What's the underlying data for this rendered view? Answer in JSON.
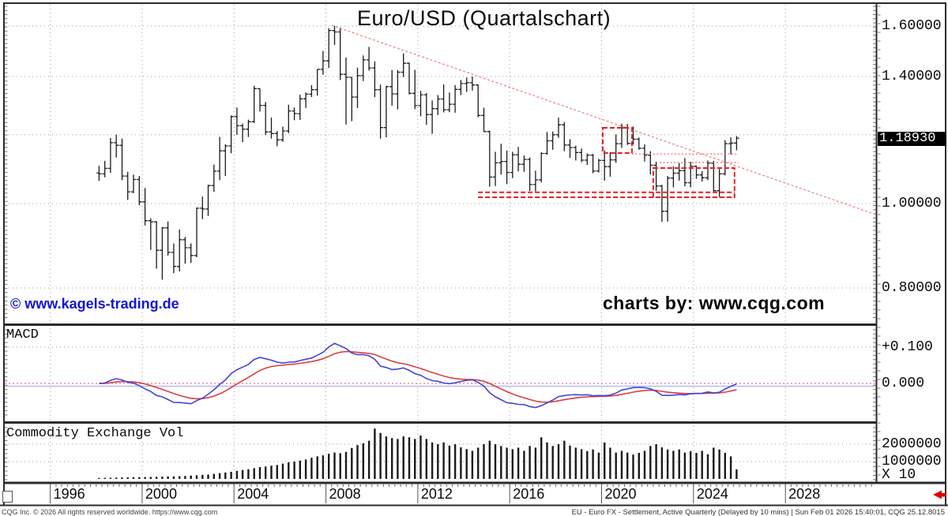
{
  "window": {
    "title": "Euro/USD (Quartalschart)"
  },
  "watermarks": {
    "left": "© www.kagels-trading.de",
    "right": "charts by: www.cqg.com"
  },
  "price_axis": {
    "labels": [
      {
        "text": "1.60000",
        "value": 1.6
      },
      {
        "text": "1.40000",
        "value": 1.4
      },
      {
        "text": "1.00000",
        "value": 1.0
      },
      {
        "text": "0.80000",
        "value": 0.8
      }
    ],
    "gridlines": [
      1.6,
      1.4,
      1.2,
      1.0,
      0.8
    ],
    "current_price_label": "1.18930",
    "current_price": 1.1893
  },
  "macd_panel": {
    "label": "MACD",
    "axis_labels": [
      {
        "text": "+0.100",
        "value": 0.1
      },
      {
        "text": "0.000",
        "value": 0.0
      }
    ]
  },
  "volume_panel": {
    "label": "Commodity Exchange Vol",
    "axis_labels": [
      {
        "text": "2000000",
        "value": 2000000
      },
      {
        "text": "1000000",
        "value": 1000000
      }
    ],
    "multiplier_label": "X 10"
  },
  "x_axis": {
    "year_labels": [
      1996,
      2000,
      2004,
      2008,
      2012,
      2016,
      2020,
      2024,
      2028
    ],
    "scroll_arrow_icon": "left-arrow-red"
  },
  "status_bar": {
    "left": "CQG Inc. © 2026 All rights reserved worldwide. https://www.cqg.com",
    "right": "EU - Euro FX - Settlement, Active Quarterly (Delayed by 10 mins) | Sun Feb 01 2026 15:40:01, CQG 25.12.8015"
  },
  "colors": {
    "bar": "#1a1a1a",
    "macd_line": "#4444d4",
    "signal_line": "#d84040",
    "macd_zero_red": "#e87878",
    "macd_zero_blue": "#b4bcf0",
    "annotation_red": "#e82020",
    "annotation_red_light": "#ea6060",
    "trendline_pink": "#f08585",
    "watermark_blue": "#1414d6",
    "grid_dot": "#9a9a9a",
    "border": "#2b2b2b",
    "current_price_bg": "#000000",
    "current_price_fg": "#ffffff",
    "scroll_arrow_red": "#e00000"
  },
  "chart_data": {
    "type": "ohlc-bar",
    "instrument": "EU - Euro FX",
    "timeframe": "quarterly",
    "title": "Euro/USD (Quartalschart)",
    "y_axis": {
      "scale": "log",
      "gridlines": [
        1.6,
        1.4,
        1.2,
        1.0,
        0.8
      ],
      "last_price": 1.1893
    },
    "x_axis": {
      "tick_years": [
        1996,
        2000,
        2004,
        2008,
        2012,
        2016,
        2020,
        2024,
        2028
      ],
      "data_start": "1998Q1",
      "data_end": "2025Q4"
    },
    "columns": [
      "year",
      "quarter",
      "open",
      "high",
      "low",
      "close",
      "volume"
    ],
    "rows": [
      [
        1998,
        1,
        1.085,
        1.105,
        1.062,
        1.082,
        60000
      ],
      [
        1998,
        2,
        1.082,
        1.12,
        1.072,
        1.098,
        65000
      ],
      [
        1998,
        3,
        1.098,
        1.19,
        1.085,
        1.175,
        70000
      ],
      [
        1998,
        4,
        1.175,
        1.2,
        1.13,
        1.167,
        75000
      ],
      [
        1999,
        1,
        1.167,
        1.188,
        1.064,
        1.076,
        85000
      ],
      [
        1999,
        2,
        1.076,
        1.088,
        1.01,
        1.032,
        90000
      ],
      [
        1999,
        3,
        1.032,
        1.08,
        1.028,
        1.066,
        95000
      ],
      [
        1999,
        4,
        1.066,
        1.076,
        0.996,
        1.005,
        100000
      ],
      [
        2000,
        1,
        1.005,
        1.042,
        0.944,
        0.956,
        110000
      ],
      [
        2000,
        2,
        0.956,
        0.962,
        0.885,
        0.953,
        115000
      ],
      [
        2000,
        3,
        0.953,
        0.955,
        0.842,
        0.884,
        120000
      ],
      [
        2000,
        4,
        0.884,
        0.94,
        0.818,
        0.938,
        130000
      ],
      [
        2001,
        1,
        0.938,
        0.954,
        0.872,
        0.879,
        140000
      ],
      [
        2001,
        2,
        0.879,
        0.9,
        0.832,
        0.847,
        150000
      ],
      [
        2001,
        3,
        0.847,
        0.934,
        0.836,
        0.909,
        160000
      ],
      [
        2001,
        4,
        0.909,
        0.916,
        0.853,
        0.89,
        170000
      ],
      [
        2002,
        1,
        0.89,
        0.9,
        0.855,
        0.872,
        190000
      ],
      [
        2002,
        2,
        0.872,
        0.99,
        0.868,
        0.988,
        210000
      ],
      [
        2002,
        3,
        0.988,
        1.019,
        0.96,
        0.986,
        230000
      ],
      [
        2002,
        4,
        0.986,
        1.051,
        0.968,
        1.049,
        250000
      ],
      [
        2003,
        1,
        1.049,
        1.109,
        1.032,
        1.09,
        290000
      ],
      [
        2003,
        2,
        1.09,
        1.193,
        1.064,
        1.15,
        330000
      ],
      [
        2003,
        3,
        1.15,
        1.17,
        1.076,
        1.165,
        370000
      ],
      [
        2003,
        4,
        1.165,
        1.263,
        1.143,
        1.259,
        410000
      ],
      [
        2004,
        1,
        1.259,
        1.29,
        1.2,
        1.229,
        470000
      ],
      [
        2004,
        2,
        1.229,
        1.236,
        1.177,
        1.218,
        520000
      ],
      [
        2004,
        3,
        1.218,
        1.249,
        1.193,
        1.242,
        560000
      ],
      [
        2004,
        4,
        1.242,
        1.366,
        1.238,
        1.356,
        620000
      ],
      [
        2005,
        1,
        1.356,
        1.357,
        1.276,
        1.297,
        680000
      ],
      [
        2005,
        2,
        1.297,
        1.309,
        1.199,
        1.209,
        720000
      ],
      [
        2005,
        3,
        1.209,
        1.256,
        1.188,
        1.204,
        760000
      ],
      [
        2005,
        4,
        1.204,
        1.212,
        1.164,
        1.184,
        800000
      ],
      [
        2006,
        1,
        1.184,
        1.226,
        1.178,
        1.212,
        880000
      ],
      [
        2006,
        2,
        1.212,
        1.299,
        1.205,
        1.278,
        960000
      ],
      [
        2006,
        3,
        1.278,
        1.29,
        1.247,
        1.269,
        1000000
      ],
      [
        2006,
        4,
        1.269,
        1.334,
        1.248,
        1.32,
        1060000
      ],
      [
        2007,
        1,
        1.32,
        1.342,
        1.288,
        1.336,
        1120000
      ],
      [
        2007,
        2,
        1.336,
        1.368,
        1.326,
        1.352,
        1220000
      ],
      [
        2007,
        3,
        1.352,
        1.427,
        1.331,
        1.427,
        1300000
      ],
      [
        2007,
        4,
        1.427,
        1.498,
        1.406,
        1.459,
        1360000
      ],
      [
        2008,
        1,
        1.459,
        1.591,
        1.432,
        1.581,
        1450000
      ],
      [
        2008,
        2,
        1.581,
        1.601,
        1.522,
        1.575,
        1520000
      ],
      [
        2008,
        3,
        1.575,
        1.594,
        1.387,
        1.408,
        1480000
      ],
      [
        2008,
        4,
        1.408,
        1.472,
        1.233,
        1.397,
        1560000
      ],
      [
        2009,
        1,
        1.397,
        1.398,
        1.244,
        1.326,
        1780000
      ],
      [
        2009,
        2,
        1.326,
        1.433,
        1.288,
        1.403,
        1950000
      ],
      [
        2009,
        3,
        1.403,
        1.48,
        1.383,
        1.463,
        2050000
      ],
      [
        2009,
        4,
        1.463,
        1.514,
        1.422,
        1.432,
        2200000
      ],
      [
        2010,
        1,
        1.432,
        1.457,
        1.326,
        1.352,
        2900000
      ],
      [
        2010,
        2,
        1.352,
        1.37,
        1.188,
        1.223,
        2650000
      ],
      [
        2010,
        3,
        1.223,
        1.366,
        1.192,
        1.363,
        2450000
      ],
      [
        2010,
        4,
        1.363,
        1.424,
        1.296,
        1.337,
        2350000
      ],
      [
        2011,
        1,
        1.337,
        1.424,
        1.283,
        1.416,
        2300000
      ],
      [
        2011,
        2,
        1.416,
        1.488,
        1.398,
        1.45,
        2450000
      ],
      [
        2011,
        3,
        1.45,
        1.453,
        1.335,
        1.339,
        2400000
      ],
      [
        2011,
        4,
        1.339,
        1.425,
        1.284,
        1.296,
        2300000
      ],
      [
        2012,
        1,
        1.296,
        1.348,
        1.26,
        1.334,
        2500000
      ],
      [
        2012,
        2,
        1.334,
        1.34,
        1.232,
        1.266,
        2300000
      ],
      [
        2012,
        3,
        1.266,
        1.314,
        1.203,
        1.286,
        2100000
      ],
      [
        2012,
        4,
        1.286,
        1.333,
        1.264,
        1.319,
        2000000
      ],
      [
        2013,
        1,
        1.319,
        1.371,
        1.273,
        1.282,
        2100000
      ],
      [
        2013,
        2,
        1.282,
        1.342,
        1.274,
        1.301,
        1920000
      ],
      [
        2013,
        3,
        1.301,
        1.369,
        1.272,
        1.353,
        2000000
      ],
      [
        2013,
        4,
        1.353,
        1.387,
        1.333,
        1.374,
        1820000
      ],
      [
        2014,
        1,
        1.374,
        1.396,
        1.344,
        1.377,
        1720000
      ],
      [
        2014,
        2,
        1.377,
        1.4,
        1.349,
        1.369,
        1620000
      ],
      [
        2014,
        3,
        1.369,
        1.371,
        1.257,
        1.263,
        1800000
      ],
      [
        2014,
        4,
        1.263,
        1.289,
        1.209,
        1.21,
        2000000
      ],
      [
        2015,
        1,
        1.21,
        1.213,
        1.046,
        1.073,
        2200000
      ],
      [
        2015,
        2,
        1.073,
        1.147,
        1.048,
        1.114,
        2000000
      ],
      [
        2015,
        3,
        1.114,
        1.172,
        1.08,
        1.118,
        1900000
      ],
      [
        2015,
        4,
        1.118,
        1.151,
        1.053,
        1.086,
        1800000
      ],
      [
        2016,
        1,
        1.086,
        1.147,
        1.07,
        1.138,
        1720000
      ],
      [
        2016,
        2,
        1.138,
        1.162,
        1.089,
        1.11,
        1800000
      ],
      [
        2016,
        3,
        1.11,
        1.136,
        1.088,
        1.124,
        1620000
      ],
      [
        2016,
        4,
        1.124,
        1.13,
        1.034,
        1.052,
        1900000
      ],
      [
        2017,
        1,
        1.052,
        1.091,
        1.033,
        1.065,
        1800000
      ],
      [
        2017,
        2,
        1.065,
        1.146,
        1.058,
        1.142,
        2400000
      ],
      [
        2017,
        3,
        1.142,
        1.209,
        1.138,
        1.181,
        2100000
      ],
      [
        2017,
        4,
        1.181,
        1.21,
        1.153,
        1.2,
        1900000
      ],
      [
        2018,
        1,
        1.2,
        1.256,
        1.19,
        1.232,
        2000000
      ],
      [
        2018,
        2,
        1.232,
        1.241,
        1.149,
        1.168,
        2200000
      ],
      [
        2018,
        3,
        1.168,
        1.186,
        1.129,
        1.16,
        1920000
      ],
      [
        2018,
        4,
        1.16,
        1.166,
        1.121,
        1.145,
        1800000
      ],
      [
        2019,
        1,
        1.145,
        1.157,
        1.116,
        1.122,
        1720000
      ],
      [
        2019,
        2,
        1.122,
        1.142,
        1.108,
        1.137,
        1600000
      ],
      [
        2019,
        3,
        1.137,
        1.141,
        1.084,
        1.09,
        1700000
      ],
      [
        2019,
        4,
        1.09,
        1.126,
        1.086,
        1.121,
        1520000
      ],
      [
        2020,
        1,
        1.121,
        1.151,
        1.063,
        1.103,
        2100000
      ],
      [
        2020,
        2,
        1.103,
        1.146,
        1.074,
        1.123,
        1800000
      ],
      [
        2020,
        3,
        1.123,
        1.201,
        1.114,
        1.172,
        1520000
      ],
      [
        2020,
        4,
        1.172,
        1.236,
        1.159,
        1.222,
        1620000
      ],
      [
        2021,
        1,
        1.222,
        1.235,
        1.168,
        1.173,
        1520000
      ],
      [
        2021,
        2,
        1.173,
        1.226,
        1.169,
        1.186,
        1400000
      ],
      [
        2021,
        3,
        1.186,
        1.191,
        1.153,
        1.158,
        1500000
      ],
      [
        2021,
        4,
        1.158,
        1.17,
        1.118,
        1.137,
        1620000
      ],
      [
        2022,
        1,
        1.137,
        1.149,
        1.08,
        1.107,
        1900000
      ],
      [
        2022,
        2,
        1.107,
        1.117,
        1.035,
        1.048,
        2000000
      ],
      [
        2022,
        3,
        1.048,
        1.051,
        0.953,
        0.98,
        1820000
      ],
      [
        2022,
        4,
        0.98,
        1.076,
        0.954,
        1.07,
        1700000
      ],
      [
        2023,
        1,
        1.07,
        1.104,
        1.044,
        1.084,
        1620000
      ],
      [
        2023,
        2,
        1.084,
        1.113,
        1.063,
        1.091,
        1700000
      ],
      [
        2023,
        3,
        1.091,
        1.128,
        1.047,
        1.057,
        1520000
      ],
      [
        2023,
        4,
        1.057,
        1.117,
        1.044,
        1.104,
        1600000
      ],
      [
        2024,
        1,
        1.104,
        1.106,
        1.068,
        1.079,
        1500000
      ],
      [
        2024,
        2,
        1.079,
        1.09,
        1.06,
        1.071,
        1620000
      ],
      [
        2024,
        3,
        1.071,
        1.121,
        1.064,
        1.113,
        1420000
      ],
      [
        2024,
        4,
        1.113,
        1.12,
        1.033,
        1.035,
        1800000
      ],
      [
        2025,
        1,
        1.035,
        1.096,
        1.018,
        1.082,
        1700000
      ],
      [
        2025,
        2,
        1.082,
        1.183,
        1.078,
        1.172,
        1500000
      ],
      [
        2025,
        3,
        1.172,
        1.192,
        1.139,
        1.174,
        1300000
      ],
      [
        2025,
        4,
        1.174,
        1.196,
        1.152,
        1.189,
        550000
      ]
    ],
    "indicators": [
      {
        "name": "MACD",
        "type": "line",
        "lines": [
          "macd",
          "signal"
        ],
        "params": [
          12,
          26,
          9
        ],
        "axis_range": [
          -0.1,
          0.1
        ]
      },
      {
        "name": "Commodity Exchange Vol",
        "type": "bar",
        "multiplier": 10
      }
    ],
    "annotations": {
      "trendline": {
        "t1": 2008.25,
        "p1": 1.603,
        "t2": 2032.0,
        "p2": 0.9715
      },
      "boxes": [
        {
          "name": "resistance-box-2020",
          "t1": 2020.05,
          "t2": 2021.32,
          "p_top": 1.2223,
          "p_bottom": 1.1433
        },
        {
          "name": "consolidation-box-2022-2025",
          "t1": 2022.25,
          "t2": 2025.79,
          "p_top": 1.0988,
          "p_bottom": 1.0171
        }
      ],
      "support_band": {
        "t1": 2014.62,
        "t2": 2025.79,
        "p_top": 1.0305,
        "p_bottom": 1.0171
      },
      "dotted_lines": [
        {
          "t1": 2021.32,
          "t2": 2025.96,
          "p": 1.1405
        },
        {
          "t1": 2022.53,
          "t2": 2025.96,
          "p": 1.115
        }
      ]
    }
  }
}
